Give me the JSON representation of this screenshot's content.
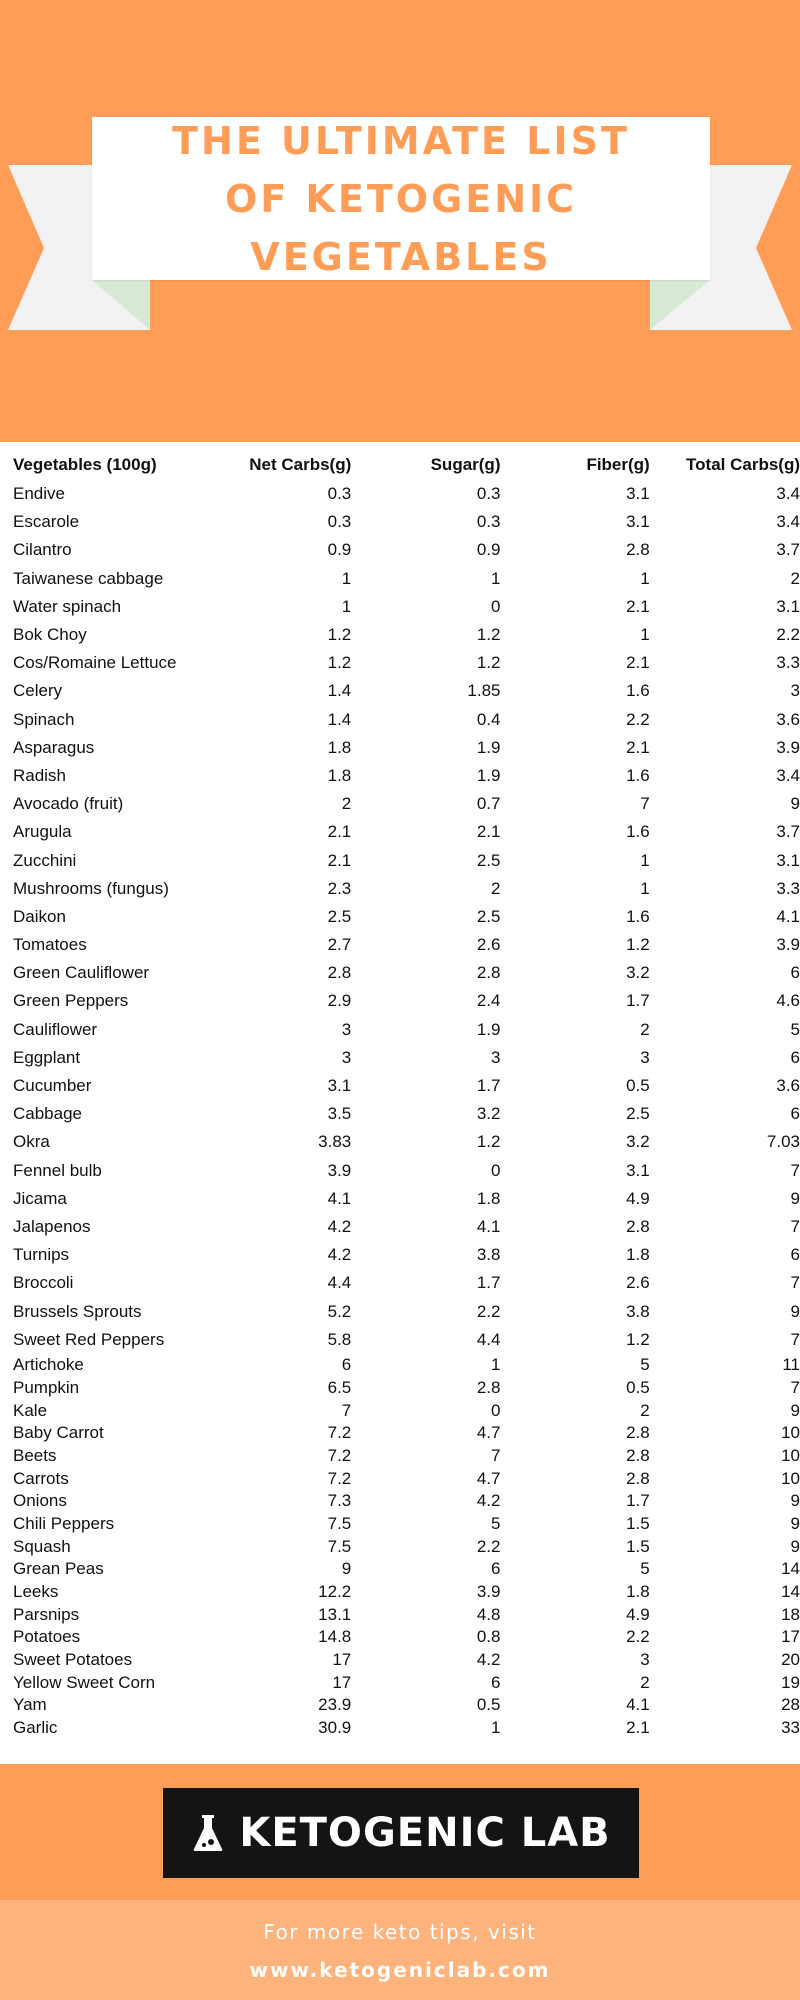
{
  "header": {
    "title": "THE ULTIMATE LIST\nOF KETOGENIC\nVEGETABLES"
  },
  "table": {
    "headers": [
      "Vegetables (100g)",
      "Net Carbs(g)",
      "Sugar(g)",
      "Fiber(g)",
      "Total Carbs(g)"
    ],
    "rows": [
      [
        "Endive",
        "0.3",
        "0.3",
        "3.1",
        "3.4"
      ],
      [
        "Escarole",
        "0.3",
        "0.3",
        "3.1",
        "3.4"
      ],
      [
        "Cilantro",
        "0.9",
        "0.9",
        "2.8",
        "3.7"
      ],
      [
        "Taiwanese cabbage",
        "1",
        "1",
        "1",
        "2"
      ],
      [
        "Water spinach",
        "1",
        "0",
        "2.1",
        "3.1"
      ],
      [
        "Bok Choy",
        "1.2",
        "1.2",
        "1",
        "2.2"
      ],
      [
        "Cos/Romaine Lettuce",
        "1.2",
        "1.2",
        "2.1",
        "3.3"
      ],
      [
        "Celery",
        "1.4",
        "1.85",
        "1.6",
        "3"
      ],
      [
        "Spinach",
        "1.4",
        "0.4",
        "2.2",
        "3.6"
      ],
      [
        "Asparagus",
        "1.8",
        "1.9",
        "2.1",
        "3.9"
      ],
      [
        "Radish",
        "1.8",
        "1.9",
        "1.6",
        "3.4"
      ],
      [
        "Avocado (fruit)",
        "2",
        "0.7",
        "7",
        "9"
      ],
      [
        "Arugula",
        "2.1",
        "2.1",
        "1.6",
        "3.7"
      ],
      [
        "Zucchini",
        "2.1",
        "2.5",
        "1",
        "3.1"
      ],
      [
        "Mushrooms (fungus)",
        "2.3",
        "2",
        "1",
        "3.3"
      ],
      [
        "Daikon",
        "2.5",
        "2.5",
        "1.6",
        "4.1"
      ],
      [
        "Tomatoes",
        "2.7",
        "2.6",
        "1.2",
        "3.9"
      ],
      [
        "Green Cauliflower",
        "2.8",
        "2.8",
        "3.2",
        "6"
      ],
      [
        "Green Peppers",
        "2.9",
        "2.4",
        "1.7",
        "4.6"
      ],
      [
        "Cauliflower",
        "3",
        "1.9",
        "2",
        "5"
      ],
      [
        "Eggplant",
        "3",
        "3",
        "3",
        "6"
      ],
      [
        "Cucumber",
        "3.1",
        "1.7",
        "0.5",
        "3.6"
      ],
      [
        "Cabbage",
        "3.5",
        "3.2",
        "2.5",
        "6"
      ],
      [
        "Okra",
        "3.83",
        "1.2",
        "3.2",
        "7.03"
      ],
      [
        "Fennel bulb",
        "3.9",
        "0",
        "3.1",
        "7"
      ],
      [
        "Jicama",
        "4.1",
        "1.8",
        "4.9",
        "9"
      ],
      [
        "Jalapenos",
        "4.2",
        "4.1",
        "2.8",
        "7"
      ],
      [
        "Turnips",
        "4.2",
        "3.8",
        "1.8",
        "6"
      ],
      [
        "Broccoli",
        "4.4",
        "1.7",
        "2.6",
        "7"
      ],
      [
        "Brussels Sprouts",
        "5.2",
        "2.2",
        "3.8",
        "9"
      ],
      [
        "Sweet Red Peppers",
        "5.8",
        "4.4",
        "1.2",
        "7"
      ],
      [
        "Artichoke",
        "6",
        "1",
        "5",
        "11"
      ],
      [
        "Pumpkin",
        "6.5",
        "2.8",
        "0.5",
        "7"
      ],
      [
        "Kale",
        "7",
        "0",
        "2",
        "9"
      ],
      [
        "Baby Carrot",
        "7.2",
        "4.7",
        "2.8",
        "10"
      ],
      [
        "Beets",
        "7.2",
        "7",
        "2.8",
        "10"
      ],
      [
        "Carrots",
        "7.2",
        "4.7",
        "2.8",
        "10"
      ],
      [
        "Onions",
        "7.3",
        "4.2",
        "1.7",
        "9"
      ],
      [
        "Chili Peppers",
        "7.5",
        "5",
        "1.5",
        "9"
      ],
      [
        "Squash",
        "7.5",
        "2.2",
        "1.5",
        "9"
      ],
      [
        "Grean Peas",
        "9",
        "6",
        "5",
        "14"
      ],
      [
        "Leeks",
        "12.2",
        "3.9",
        "1.8",
        "14"
      ],
      [
        "Parsnips",
        "13.1",
        "4.8",
        "4.9",
        "18"
      ],
      [
        "Potatoes",
        "14.8",
        "0.8",
        "2.2",
        "17"
      ],
      [
        "Sweet Potatoes",
        "17",
        "4.2",
        "3",
        "20"
      ],
      [
        "Yellow Sweet Corn",
        "17",
        "6",
        "2",
        "19"
      ],
      [
        "Yam",
        "23.9",
        "0.5",
        "4.1",
        "28"
      ],
      [
        "Garlic",
        "30.9",
        "1",
        "2.1",
        "33"
      ]
    ]
  },
  "logo": {
    "icon": "flask-icon",
    "text": "KETOGENIC LAB"
  },
  "footer": {
    "line1": "For more keto tips, visit",
    "line2": "www.ketogeniclab.com"
  },
  "colors": {
    "accent": "#ff9c56",
    "accent_light": "#ffb37c",
    "logo_bg": "#141414",
    "ribbon_tail": "#f2f2f2",
    "ribbon_fold": "#d8ead6"
  }
}
